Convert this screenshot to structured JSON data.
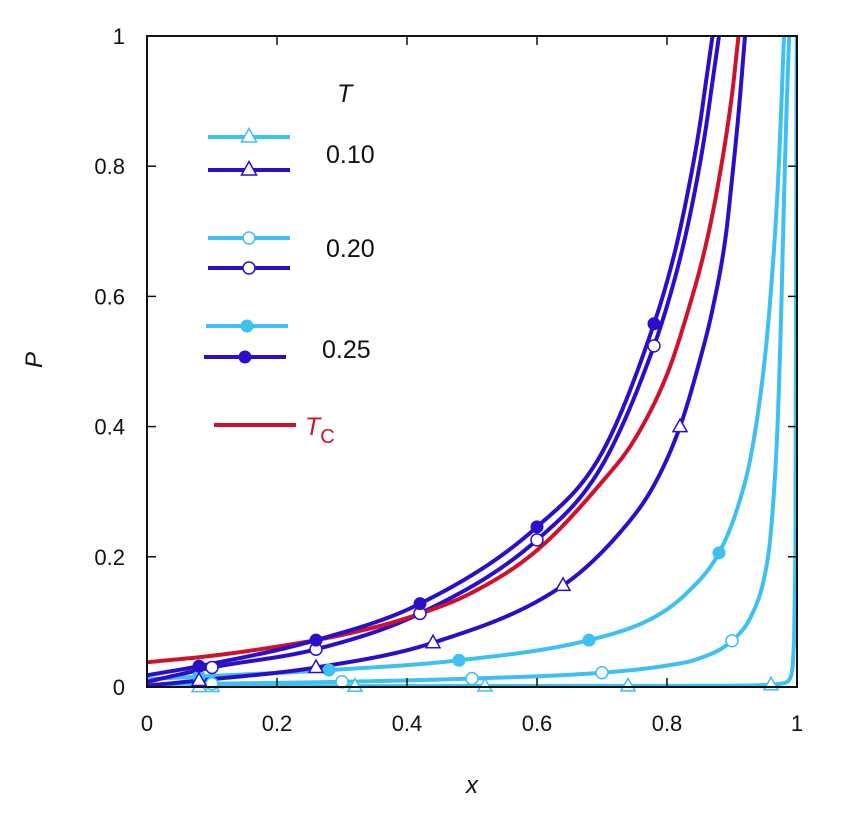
{
  "colors": {
    "light": "#3dc0f2",
    "dark": "#2a0ec9",
    "critical": "#d0112b",
    "axis": "#111111",
    "background": "#ffffff"
  },
  "chart_data": {
    "type": "line",
    "xlabel": "x",
    "ylabel": "P",
    "xlim": [
      0,
      1
    ],
    "ylim": [
      0,
      1
    ],
    "xticks": [
      "0",
      "0.2",
      "0.4",
      "0.6",
      "0.8",
      "1"
    ],
    "yticks": [
      "0",
      "0.2",
      "0.4",
      "0.6",
      "0.8",
      "1"
    ],
    "grid": false,
    "legend": {
      "title": "T",
      "placement": "top-left",
      "entries": [
        {
          "label": "0.10",
          "marker": "triangle-open"
        },
        {
          "label": "0.20",
          "marker": "circle-open"
        },
        {
          "label": "0.25",
          "marker": "circle-filled"
        },
        {
          "label": "C",
          "marker": "none"
        }
      ]
    },
    "series": [
      {
        "color": "light",
        "marker": "triangle-open",
        "x": [
          0,
          0.1,
          0.3,
          0.5,
          0.7,
          0.9,
          0.95,
          0.975,
          0.985,
          0.99,
          0.995,
          0.998,
          0.9995
        ],
        "y": [
          0,
          0.0008,
          0.0012,
          0.0015,
          0.0017,
          0.002,
          0.003,
          0.005,
          0.008,
          0.015,
          0.06,
          0.3,
          1.0
        ],
        "markers_x": [
          0.08,
          0.1,
          0.32,
          0.52,
          0.74,
          0.96
        ]
      },
      {
        "color": "light",
        "marker": "circle-open",
        "x": [
          0,
          0.1,
          0.3,
          0.5,
          0.7,
          0.8,
          0.85,
          0.9,
          0.93,
          0.95,
          0.96,
          0.97,
          0.975,
          0.98,
          0.985,
          0.988
        ],
        "y": [
          0.0035,
          0.005,
          0.008,
          0.013,
          0.022,
          0.033,
          0.044,
          0.071,
          0.11,
          0.17,
          0.24,
          0.4,
          0.55,
          0.75,
          0.92,
          1.0
        ],
        "markers_x": [
          0.1,
          0.3,
          0.5,
          0.7,
          0.9
        ]
      },
      {
        "color": "light",
        "marker": "circle-filled",
        "x": [
          0,
          0.08,
          0.28,
          0.48,
          0.68,
          0.78,
          0.83,
          0.88,
          0.91,
          0.93,
          0.95,
          0.96,
          0.97,
          0.975,
          0.98
        ],
        "y": [
          0.012,
          0.016,
          0.026,
          0.041,
          0.072,
          0.107,
          0.144,
          0.206,
          0.28,
          0.36,
          0.5,
          0.61,
          0.76,
          0.87,
          1.0
        ],
        "markers_x": [
          0.08,
          0.28,
          0.48,
          0.68,
          0.88
        ]
      },
      {
        "color": "dark",
        "marker": "triangle-open",
        "x": [
          0,
          0.08,
          0.26,
          0.44,
          0.64,
          0.73,
          0.78,
          0.82,
          0.85,
          0.87,
          0.89,
          0.9,
          0.91,
          0.92
        ],
        "y": [
          0.002,
          0.01,
          0.03,
          0.068,
          0.156,
          0.24,
          0.31,
          0.4,
          0.5,
          0.58,
          0.69,
          0.78,
          0.88,
          1.0
        ],
        "markers_x": [
          0.08,
          0.26,
          0.44,
          0.64,
          0.82
        ]
      },
      {
        "color": "dark",
        "marker": "circle-open",
        "x": [
          0,
          0.1,
          0.26,
          0.42,
          0.6,
          0.7,
          0.78,
          0.81,
          0.83,
          0.85,
          0.86,
          0.87,
          0.88
        ],
        "y": [
          0.008,
          0.03,
          0.058,
          0.113,
          0.226,
          0.34,
          0.524,
          0.62,
          0.7,
          0.8,
          0.86,
          0.93,
          1.0
        ],
        "markers_x": [
          0.1,
          0.26,
          0.42,
          0.6,
          0.78
        ]
      },
      {
        "color": "dark",
        "marker": "circle-filled",
        "x": [
          0,
          0.08,
          0.26,
          0.42,
          0.6,
          0.7,
          0.78,
          0.81,
          0.83,
          0.85,
          0.86,
          0.87
        ],
        "y": [
          0.018,
          0.032,
          0.072,
          0.128,
          0.246,
          0.36,
          0.558,
          0.66,
          0.75,
          0.86,
          0.93,
          1.0
        ],
        "markers_x": [
          0.08,
          0.26,
          0.42,
          0.6,
          0.78
        ]
      },
      {
        "color": "critical",
        "marker": "none",
        "x": [
          0,
          0.1,
          0.2,
          0.3,
          0.4,
          0.5,
          0.6,
          0.7,
          0.75,
          0.8,
          0.83,
          0.86,
          0.88,
          0.9,
          0.91
        ],
        "y": [
          0.038,
          0.048,
          0.062,
          0.08,
          0.106,
          0.145,
          0.21,
          0.315,
          0.38,
          0.48,
          0.57,
          0.68,
          0.78,
          0.91,
          1.0
        ],
        "markers_x": []
      }
    ]
  }
}
